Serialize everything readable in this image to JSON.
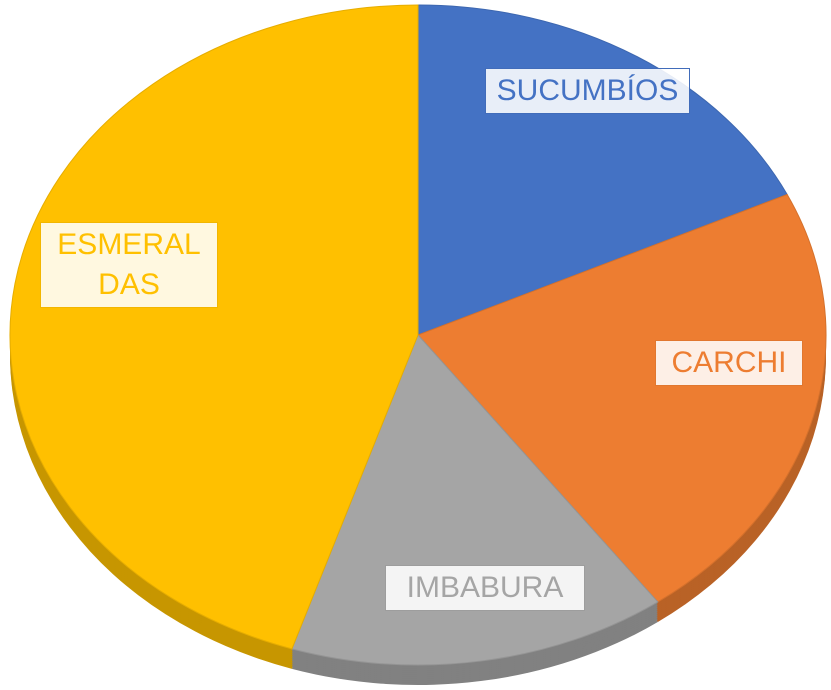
{
  "chart_data": {
    "type": "pie",
    "categories": [
      "SUCUMBÍOS",
      "CARCHI",
      "IMBABURA",
      "ESMERALDAS"
    ],
    "values": [
      18,
      22,
      15,
      45
    ],
    "colors": [
      "#4472c4",
      "#ed7d31",
      "#a5a5a5",
      "#ffc000"
    ]
  }
}
